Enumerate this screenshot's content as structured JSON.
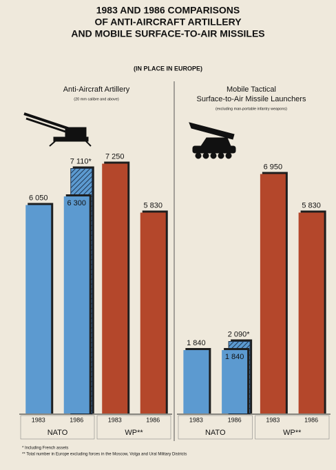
{
  "title": [
    "1983 AND 1986 COMPARISONS",
    "OF ANTI-AIRCRAFT ARTILLERY",
    "AND MOBILE SURFACE-TO-AIR MISSILES"
  ],
  "subtitle": "(IN PLACE IN EUROPE)",
  "footnotes": [
    "*  Including French assets",
    "**  Total number in Europe excluding forces in the Moscow, Volga and Ural Military Districts"
  ],
  "chart_data": [
    {
      "type": "bar",
      "title": [
        "Anti-Aircraft Artillery"
      ],
      "subtitle": "(20 mm calibre and above)",
      "categories": [
        "1983",
        "1986",
        "1983",
        "1986"
      ],
      "groups": [
        "NATO",
        "WP**"
      ],
      "values": [
        6050,
        6300,
        7250,
        5830
      ],
      "value_labels": [
        "6 050",
        "6 300",
        "7 250",
        "5 830"
      ],
      "colors": [
        "#5c9ad0",
        "#5c9ad0",
        "#b4472b",
        "#b4472b"
      ],
      "overlay": {
        "values": [
          null,
          7110,
          null,
          null
        ],
        "value_labels": [
          null,
          "7 110*",
          null,
          null
        ]
      },
      "ylim": [
        0,
        8000
      ]
    },
    {
      "type": "bar",
      "title": [
        "Mobile Tactical",
        "Surface-to-Air Missile Launchers"
      ],
      "subtitle": "(excluding man-portable infantry weapons)",
      "categories": [
        "1983",
        "1986",
        "1983",
        "1986"
      ],
      "groups": [
        "NATO",
        "WP**"
      ],
      "values": [
        1840,
        1840,
        6950,
        5830
      ],
      "value_labels": [
        "1 840",
        "1 840",
        "6 950",
        "5 830"
      ],
      "colors": [
        "#5c9ad0",
        "#5c9ad0",
        "#b4472b",
        "#b4472b"
      ],
      "overlay": {
        "values": [
          null,
          2090,
          null,
          null
        ],
        "value_labels": [
          null,
          "2 090*",
          null,
          null
        ]
      },
      "ylim": [
        0,
        8000
      ]
    }
  ]
}
